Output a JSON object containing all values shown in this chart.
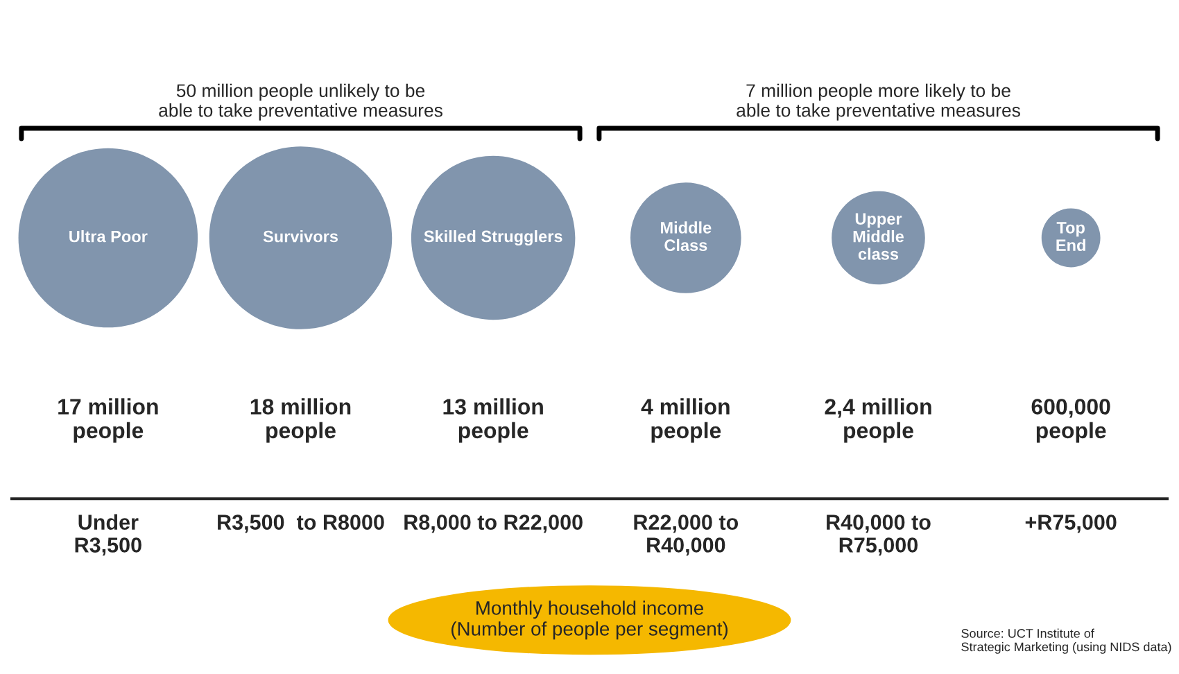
{
  "chart_data": {
    "type": "other",
    "categories": [
      "Under\nR3,500",
      "R3,500  to R8000",
      "R8,000 to R22,000",
      "R22,000 to\nR40,000",
      "R40,000 to\nR75,000",
      "+R75,000"
    ],
    "xlabel": "Monthly household income\n(Number of people per segment)",
    "series": [
      {
        "color": "#8195ad",
        "values": [
          17000000,
          18000000,
          13000000,
          4000000,
          2400000,
          600000
        ],
        "value_labels": [
          "17 million\npeople",
          "18 million\npeople",
          "13 million\npeople",
          "4 million\npeople",
          "2,4 million\npeople",
          "600,000\npeople"
        ]
      }
    ],
    "annotations": [
      "50 million people unlikely to be\nable to take preventative measures",
      "7 million people more likely to be\nable to take preventative measures",
      "Ultra Poor",
      "Survivors",
      "Skilled Strugglers",
      "Middle\nClass",
      "Upper\nMiddle\nclass",
      "Top\nEnd",
      "Source: UCT Institute of\nStrategic Marketing (using NIDS data)"
    ]
  }
}
